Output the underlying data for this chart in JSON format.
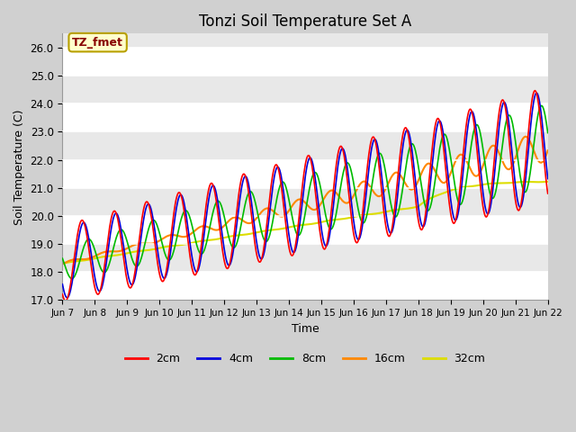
{
  "title": "Tonzi Soil Temperature Set A",
  "xlabel": "Time",
  "ylabel": "Soil Temperature (C)",
  "ylim": [
    17.0,
    26.5
  ],
  "fig_bg": "#d0d0d0",
  "plot_bg": "#e8e8e8",
  "grid_color": "white",
  "annotation_text": "TZ_fmet",
  "annotation_bg": "#ffffcc",
  "annotation_border": "#b8a000",
  "series_colors": {
    "2cm": "#ff0000",
    "4cm": "#0000dd",
    "8cm": "#00bb00",
    "16cm": "#ff8800",
    "32cm": "#dddd00"
  },
  "tick_labels": [
    "Jun 7",
    "Jun 8",
    "Jun 9",
    "Jun 10",
    "Jun 11",
    "Jun 12",
    "Jun 13",
    "Jun 14",
    "Jun 15",
    "Jun 16",
    "Jun 17",
    "Jun 18",
    "Jun 19",
    "Jun 20",
    "Jun 21",
    "Jun 22"
  ],
  "yticks": [
    17.0,
    18.0,
    19.0,
    20.0,
    21.0,
    22.0,
    23.0,
    24.0,
    25.0,
    26.0
  ]
}
